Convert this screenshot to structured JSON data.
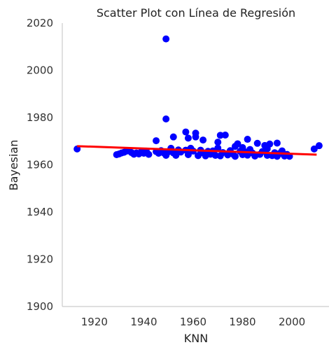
{
  "chart_data": {
    "type": "scatter",
    "title": "Scatter Plot con Línea de Regresión",
    "xlabel": "KNN",
    "ylabel": "Bayesian",
    "xlim": [
      1907,
      2015
    ],
    "ylim": [
      1900,
      2020
    ],
    "xticks": [
      1920,
      1940,
      1960,
      1980,
      2000
    ],
    "yticks": [
      1900,
      1920,
      1940,
      1960,
      1980,
      2000,
      2020
    ],
    "grid": false,
    "point_color": "#0000ff",
    "regression_color": "#ff0000",
    "regression_line": {
      "x": [
        1913,
        2010
      ],
      "y": [
        1967.9,
        1964.3
      ]
    },
    "points": [
      [
        1913,
        1966.7
      ],
      [
        1949,
        2013.3
      ],
      [
        1949,
        1979.4
      ],
      [
        1929,
        1964.3
      ],
      [
        1930,
        1964.6
      ],
      [
        1931,
        1965.0
      ],
      [
        1932,
        1965.3
      ],
      [
        1933,
        1965.8
      ],
      [
        1934,
        1966.0
      ],
      [
        1935,
        1965.2
      ],
      [
        1936,
        1964.5
      ],
      [
        1937,
        1965.0
      ],
      [
        1938,
        1964.6
      ],
      [
        1939,
        1965.5
      ],
      [
        1940,
        1964.9
      ],
      [
        1941,
        1965.8
      ],
      [
        1942,
        1964.4
      ],
      [
        1945,
        1970.2
      ],
      [
        1945,
        1965.6
      ],
      [
        1946,
        1964.9
      ],
      [
        1947,
        1966.0
      ],
      [
        1948,
        1965.1
      ],
      [
        1949,
        1964.0
      ],
      [
        1950,
        1965.5
      ],
      [
        1951,
        1967.0
      ],
      [
        1952,
        1965.0
      ],
      [
        1952,
        1971.8
      ],
      [
        1953,
        1964.0
      ],
      [
        1954,
        1966.3
      ],
      [
        1955,
        1965.4
      ],
      [
        1957,
        1966.2
      ],
      [
        1957,
        1973.9
      ],
      [
        1958,
        1964.3
      ],
      [
        1958,
        1971.3
      ],
      [
        1959,
        1967.0
      ],
      [
        1960,
        1965.8
      ],
      [
        1961,
        1973.4
      ],
      [
        1961,
        1971.8
      ],
      [
        1962,
        1963.9
      ],
      [
        1963,
        1966.2
      ],
      [
        1964,
        1965.1
      ],
      [
        1964,
        1970.5
      ],
      [
        1965,
        1963.8
      ],
      [
        1966,
        1965.7
      ],
      [
        1967,
        1964.5
      ],
      [
        1968,
        1965.9
      ],
      [
        1969,
        1964.0
      ],
      [
        1970,
        1967.1
      ],
      [
        1970,
        1969.6
      ],
      [
        1971,
        1963.8
      ],
      [
        1971,
        1972.5
      ],
      [
        1972,
        1965.2
      ],
      [
        1973,
        1972.6
      ],
      [
        1974,
        1964.2
      ],
      [
        1975,
        1966.0
      ],
      [
        1976,
        1964.6
      ],
      [
        1977,
        1967.8
      ],
      [
        1977,
        1963.6
      ],
      [
        1978,
        1968.9
      ],
      [
        1979,
        1965.7
      ],
      [
        1980,
        1967.3
      ],
      [
        1980,
        1964.3
      ],
      [
        1981,
        1965.5
      ],
      [
        1982,
        1970.8
      ],
      [
        1982,
        1964.1
      ],
      [
        1983,
        1966.5
      ],
      [
        1984,
        1965.0
      ],
      [
        1985,
        1963.7
      ],
      [
        1986,
        1969.1
      ],
      [
        1987,
        1964.4
      ],
      [
        1988,
        1965.6
      ],
      [
        1989,
        1968.2
      ],
      [
        1990,
        1964.0
      ],
      [
        1990,
        1966.8
      ],
      [
        1991,
        1968.8
      ],
      [
        1992,
        1963.9
      ],
      [
        1993,
        1965.1
      ],
      [
        1994,
        1969.2
      ],
      [
        1994,
        1963.6
      ],
      [
        1995,
        1964.8
      ],
      [
        1996,
        1965.9
      ],
      [
        1997,
        1963.7
      ],
      [
        1998,
        1964.4
      ],
      [
        1999,
        1963.6
      ],
      [
        2009,
        1966.7
      ],
      [
        2011,
        1968.1
      ]
    ]
  }
}
